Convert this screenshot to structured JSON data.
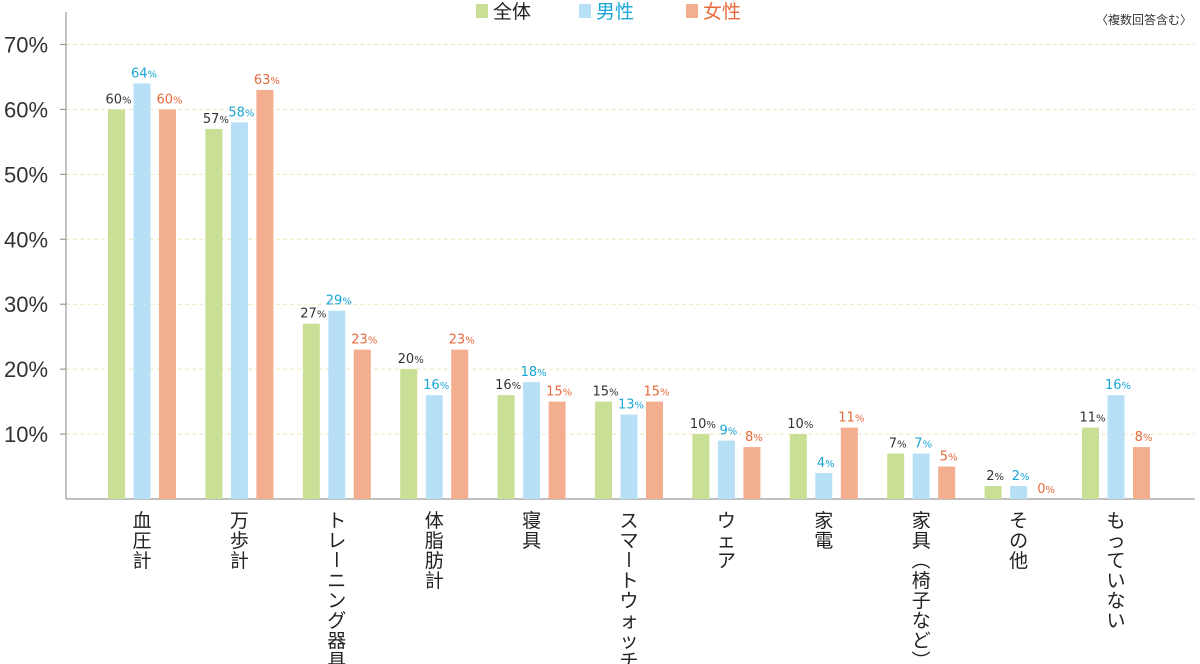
{
  "chart_data": {
    "type": "bar",
    "note": "〈複数回答含む〉",
    "unit": "%",
    "categories": [
      "血圧計",
      "万歩計",
      "トレーニング器具",
      "体脂肪計",
      "寝具",
      "スマートウォッチ",
      "ウェア",
      "家電",
      "家具（椅子など）",
      "その他",
      "もっていない"
    ],
    "series": [
      {
        "name": "全体",
        "color": "#c8df95",
        "label_color": "#333333",
        "values": [
          60,
          57,
          27,
          20,
          16,
          15,
          10,
          10,
          7,
          2,
          11
        ]
      },
      {
        "name": "男性",
        "color": "#b7e0f7",
        "label_color": "#1aa6d6",
        "values": [
          64,
          58,
          29,
          16,
          18,
          13,
          9,
          4,
          7,
          2,
          16
        ]
      },
      {
        "name": "女性",
        "color": "#f3ad8f",
        "label_color": "#e86a3c",
        "values": [
          60,
          63,
          23,
          23,
          15,
          15,
          8,
          11,
          5,
          0,
          8
        ]
      }
    ],
    "yticks": [
      "10%",
      "20%",
      "30%",
      "40%",
      "50%",
      "60%",
      "70%"
    ],
    "ylim": [
      0,
      70
    ],
    "grid": true,
    "legend": "top-center"
  }
}
